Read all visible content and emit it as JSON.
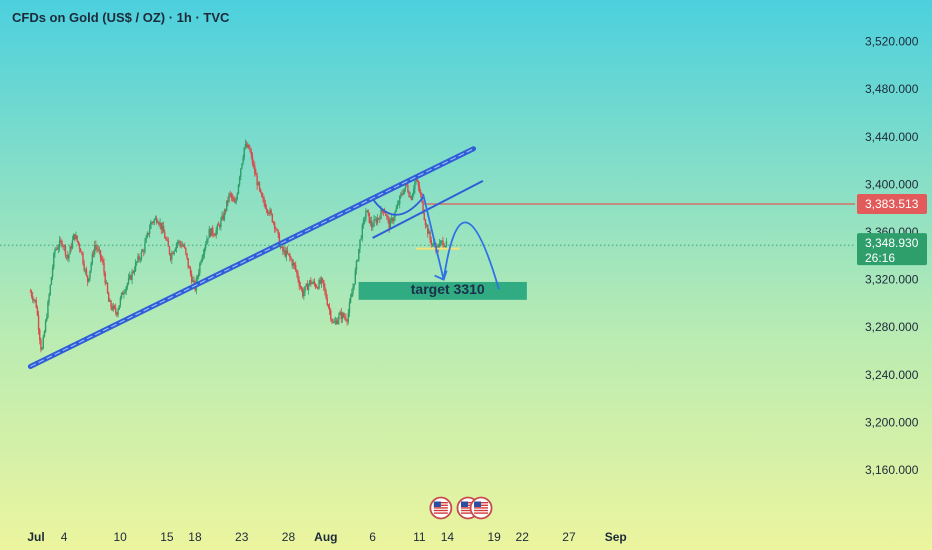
{
  "header": {
    "title": "CFDs on Gold (US$ / OZ) · 1h · TVC"
  },
  "chart_data": {
    "type": "candlestick",
    "title": "CFDs on Gold (US$ / OZ) · 1h · TVC",
    "y_ticks": [
      "3,520.000",
      "3,480.000",
      "3,440.000",
      "3,400.000",
      "3,360.000",
      "3,320.000",
      "3,280.000",
      "3,240.000",
      "3,200.000",
      "3,160.000"
    ],
    "y_tick_values": [
      3520,
      3480,
      3440,
      3400,
      3360,
      3320,
      3280,
      3240,
      3200,
      3160
    ],
    "ylim": [
      3125,
      3565
    ],
    "x_ticks": [
      {
        "label": "Jul",
        "bold": true,
        "day": 0
      },
      {
        "label": "4",
        "bold": false,
        "day": 3
      },
      {
        "label": "10",
        "bold": false,
        "day": 9
      },
      {
        "label": "15",
        "bold": false,
        "day": 14
      },
      {
        "label": "18",
        "bold": false,
        "day": 17
      },
      {
        "label": "23",
        "bold": false,
        "day": 22
      },
      {
        "label": "28",
        "bold": false,
        "day": 27
      },
      {
        "label": "Aug",
        "bold": true,
        "day": 31
      },
      {
        "label": "6",
        "bold": false,
        "day": 36
      },
      {
        "label": "11",
        "bold": false,
        "day": 41
      },
      {
        "label": "14",
        "bold": false,
        "day": 44
      },
      {
        "label": "19",
        "bold": false,
        "day": 49
      },
      {
        "label": "22",
        "bold": false,
        "day": 52
      },
      {
        "label": "27",
        "bold": false,
        "day": 57
      },
      {
        "label": "Sep",
        "bold": true,
        "day": 62
      }
    ],
    "price_path": [
      [
        -0.6,
        3310
      ],
      [
        0,
        3300
      ],
      [
        0.6,
        3258
      ],
      [
        1.3,
        3300
      ],
      [
        2,
        3345
      ],
      [
        2.8,
        3352
      ],
      [
        3.4,
        3338
      ],
      [
        4.1,
        3358
      ],
      [
        4.8,
        3345
      ],
      [
        5.5,
        3318
      ],
      [
        6.3,
        3350
      ],
      [
        7.1,
        3335
      ],
      [
        7.8,
        3300
      ],
      [
        8.6,
        3292
      ],
      [
        9.3,
        3310
      ],
      [
        10,
        3320
      ],
      [
        10.8,
        3335
      ],
      [
        11.5,
        3345
      ],
      [
        12.3,
        3368
      ],
      [
        13,
        3372
      ],
      [
        13.7,
        3358
      ],
      [
        14.4,
        3340
      ],
      [
        15.1,
        3352
      ],
      [
        15.8,
        3348
      ],
      [
        16.4,
        3328
      ],
      [
        17,
        3312
      ],
      [
        17.7,
        3340
      ],
      [
        18.5,
        3360
      ],
      [
        19.2,
        3360
      ],
      [
        20,
        3372
      ],
      [
        20.7,
        3392
      ],
      [
        21.3,
        3382
      ],
      [
        21.8,
        3410
      ],
      [
        22.3,
        3432
      ],
      [
        22.8,
        3430
      ],
      [
        23.4,
        3410
      ],
      [
        24.1,
        3388
      ],
      [
        24.9,
        3378
      ],
      [
        25.6,
        3365
      ],
      [
        26.2,
        3345
      ],
      [
        27,
        3340
      ],
      [
        27.7,
        3330
      ],
      [
        28.5,
        3308
      ],
      [
        29.3,
        3318
      ],
      [
        30,
        3315
      ],
      [
        30.6,
        3318
      ],
      [
        31.2,
        3300
      ],
      [
        31.8,
        3282
      ],
      [
        32.5,
        3290
      ],
      [
        33.3,
        3288
      ],
      [
        34,
        3318
      ],
      [
        34.7,
        3355
      ],
      [
        35.3,
        3378
      ],
      [
        35.9,
        3365
      ],
      [
        36.6,
        3372
      ],
      [
        37.2,
        3380
      ],
      [
        37.8,
        3365
      ],
      [
        38.5,
        3378
      ],
      [
        39.1,
        3392
      ],
      [
        39.6,
        3400
      ],
      [
        40.1,
        3388
      ],
      [
        40.6,
        3405
      ],
      [
        41.1,
        3392
      ],
      [
        41.6,
        3370
      ],
      [
        42.2,
        3352
      ],
      [
        42.9,
        3346
      ],
      [
        43.5,
        3352
      ],
      [
        43.9,
        3348.93
      ]
    ],
    "last_price": 3348.93,
    "last_price_label": "3,348.930",
    "countdown": "26:16",
    "resistance_price": 3383.513,
    "resistance_label": "3,383.513",
    "target_label": "target 3310",
    "target_zone": {
      "from_day": 34.5,
      "to_day": 52.5,
      "low": 3303,
      "high": 3318
    },
    "support_level": {
      "price": 3346,
      "from_day": 40.6,
      "to_day": 45.3
    },
    "trendline_main": {
      "start": [
        -0.6,
        3247
      ],
      "end": [
        46.8,
        3430
      ]
    },
    "trendline_lower": {
      "start": [
        36.0,
        3355
      ],
      "end": [
        47.8,
        3403
      ]
    },
    "projection_left": {
      "start": [
        36,
        3388
      ],
      "control": [
        38.5,
        3360
      ],
      "end": [
        41.5,
        3390
      ]
    },
    "projection_down": {
      "start": [
        41.4,
        3392
      ],
      "end": [
        43.6,
        3320
      ]
    },
    "projection_curve": [
      [
        43.6,
        3320
      ],
      [
        45.5,
        3420
      ],
      [
        49.5,
        3312
      ]
    ],
    "event_icons": [
      {
        "day": 43.3
      },
      {
        "day": 46.2
      },
      {
        "day": 47.6
      }
    ],
    "colors": {
      "bg_top": "#4cd0de",
      "bg_bottom": "#ecf59e",
      "up_candle": "#2e9e6b",
      "down_candle": "#d9484a",
      "trendline": "#2f5fd6",
      "resistance": "#e25a5a",
      "price_tag": "#2e9e6b",
      "target_zone": "#2aa97e",
      "support": "#f7e479",
      "arrow": "#2f72e8"
    }
  }
}
